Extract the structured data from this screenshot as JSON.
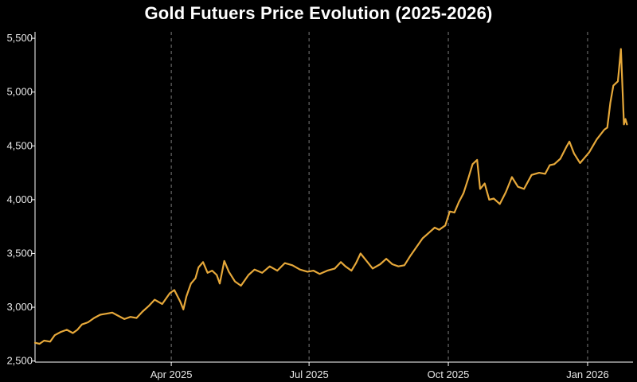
{
  "chart_data": {
    "type": "line",
    "title": "Gold Futuers Price Evolution (2025-2026)",
    "xlabel": "",
    "ylabel": "",
    "x_range": [
      "2025-01-01",
      "2026-01-31"
    ],
    "ylim": [
      2490,
      5560
    ],
    "grid": {
      "vertical_dashed_at_ticks": true,
      "horizontal": false
    },
    "background": "#000000",
    "axis_color": "#ffffff",
    "yticks": [
      {
        "value": 2500,
        "label": "2,500"
      },
      {
        "value": 3000,
        "label": "3,000"
      },
      {
        "value": 3500,
        "label": "3,500"
      },
      {
        "value": 4000,
        "label": "4,000"
      },
      {
        "value": 4500,
        "label": "4,500"
      },
      {
        "value": 5000,
        "label": "5,000"
      },
      {
        "value": 5500,
        "label": "5,500"
      }
    ],
    "xticks": [
      {
        "date": "2025-04-01",
        "label": "Apr 2025"
      },
      {
        "date": "2025-07-01",
        "label": "Jul 2025"
      },
      {
        "date": "2025-10-01",
        "label": "Oct 2025"
      },
      {
        "date": "2026-01-01",
        "label": "Jan 2026"
      }
    ],
    "series": [
      {
        "color": "#e6a83a",
        "points": [
          [
            "2025-01-01",
            2670
          ],
          [
            "2025-01-04",
            2660
          ],
          [
            "2025-01-07",
            2690
          ],
          [
            "2025-01-11",
            2680
          ],
          [
            "2025-01-14",
            2740
          ],
          [
            "2025-01-18",
            2770
          ],
          [
            "2025-01-22",
            2790
          ],
          [
            "2025-01-26",
            2760
          ],
          [
            "2025-01-29",
            2790
          ],
          [
            "2025-02-01",
            2840
          ],
          [
            "2025-02-05",
            2860
          ],
          [
            "2025-02-09",
            2900
          ],
          [
            "2025-02-13",
            2930
          ],
          [
            "2025-02-17",
            2940
          ],
          [
            "2025-02-21",
            2950
          ],
          [
            "2025-02-25",
            2920
          ],
          [
            "2025-03-01",
            2890
          ],
          [
            "2025-03-05",
            2910
          ],
          [
            "2025-03-09",
            2900
          ],
          [
            "2025-03-13",
            2960
          ],
          [
            "2025-03-17",
            3010
          ],
          [
            "2025-03-21",
            3070
          ],
          [
            "2025-03-26",
            3030
          ],
          [
            "2025-03-31",
            3130
          ],
          [
            "2025-04-03",
            3160
          ],
          [
            "2025-04-07",
            3050
          ],
          [
            "2025-04-09",
            2980
          ],
          [
            "2025-04-11",
            3100
          ],
          [
            "2025-04-14",
            3220
          ],
          [
            "2025-04-17",
            3270
          ],
          [
            "2025-04-19",
            3370
          ],
          [
            "2025-04-22",
            3420
          ],
          [
            "2025-04-25",
            3320
          ],
          [
            "2025-04-28",
            3340
          ],
          [
            "2025-05-01",
            3300
          ],
          [
            "2025-05-03",
            3220
          ],
          [
            "2025-05-06",
            3430
          ],
          [
            "2025-05-09",
            3330
          ],
          [
            "2025-05-13",
            3240
          ],
          [
            "2025-05-17",
            3200
          ],
          [
            "2025-05-22",
            3300
          ],
          [
            "2025-05-26",
            3350
          ],
          [
            "2025-05-31",
            3320
          ],
          [
            "2025-06-05",
            3380
          ],
          [
            "2025-06-10",
            3340
          ],
          [
            "2025-06-15",
            3410
          ],
          [
            "2025-06-20",
            3390
          ],
          [
            "2025-06-25",
            3350
          ],
          [
            "2025-06-30",
            3330
          ],
          [
            "2025-07-04",
            3340
          ],
          [
            "2025-07-08",
            3310
          ],
          [
            "2025-07-13",
            3340
          ],
          [
            "2025-07-18",
            3360
          ],
          [
            "2025-07-22",
            3420
          ],
          [
            "2025-07-25",
            3380
          ],
          [
            "2025-07-29",
            3340
          ],
          [
            "2025-08-01",
            3410
          ],
          [
            "2025-08-04",
            3500
          ],
          [
            "2025-08-08",
            3430
          ],
          [
            "2025-08-12",
            3360
          ],
          [
            "2025-08-17",
            3400
          ],
          [
            "2025-08-21",
            3450
          ],
          [
            "2025-08-25",
            3400
          ],
          [
            "2025-08-29",
            3380
          ],
          [
            "2025-09-02",
            3390
          ],
          [
            "2025-09-06",
            3480
          ],
          [
            "2025-09-10",
            3560
          ],
          [
            "2025-09-14",
            3640
          ],
          [
            "2025-09-18",
            3690
          ],
          [
            "2025-09-22",
            3740
          ],
          [
            "2025-09-25",
            3720
          ],
          [
            "2025-09-29",
            3760
          ],
          [
            "2025-10-02",
            3890
          ],
          [
            "2025-10-05",
            3880
          ],
          [
            "2025-10-08",
            3980
          ],
          [
            "2025-10-11",
            4060
          ],
          [
            "2025-10-14",
            4190
          ],
          [
            "2025-10-17",
            4330
          ],
          [
            "2025-10-20",
            4370
          ],
          [
            "2025-10-22",
            4100
          ],
          [
            "2025-10-25",
            4150
          ],
          [
            "2025-10-28",
            4000
          ],
          [
            "2025-10-31",
            4010
          ],
          [
            "2025-11-04",
            3960
          ],
          [
            "2025-11-08",
            4070
          ],
          [
            "2025-11-12",
            4210
          ],
          [
            "2025-11-16",
            4120
          ],
          [
            "2025-11-20",
            4100
          ],
          [
            "2025-11-25",
            4230
          ],
          [
            "2025-11-30",
            4250
          ],
          [
            "2025-12-04",
            4240
          ],
          [
            "2025-12-07",
            4320
          ],
          [
            "2025-12-10",
            4330
          ],
          [
            "2025-12-14",
            4380
          ],
          [
            "2025-12-18",
            4490
          ],
          [
            "2025-12-20",
            4540
          ],
          [
            "2025-12-23",
            4430
          ],
          [
            "2025-12-27",
            4340
          ],
          [
            "2025-12-30",
            4390
          ],
          [
            "2026-01-02",
            4440
          ],
          [
            "2026-01-07",
            4560
          ],
          [
            "2026-01-12",
            4650
          ],
          [
            "2026-01-14",
            4670
          ],
          [
            "2026-01-16",
            4900
          ],
          [
            "2026-01-18",
            5060
          ],
          [
            "2026-01-21",
            5100
          ],
          [
            "2026-01-23",
            5400
          ],
          [
            "2026-01-25",
            4700
          ],
          [
            "2026-01-26",
            4750
          ],
          [
            "2026-01-27",
            4700
          ]
        ]
      }
    ]
  }
}
